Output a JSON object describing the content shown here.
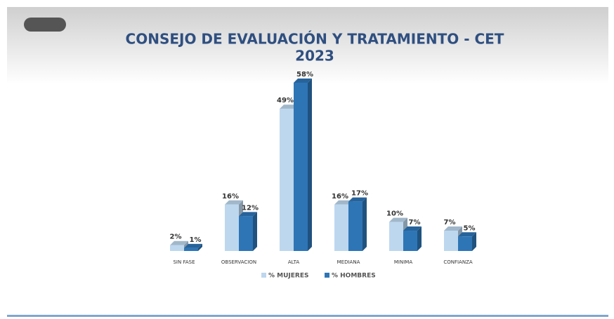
{
  "chart_data": {
    "type": "bar3d",
    "title": "CONSEJO DE EVALUACIÓN Y TRATAMIENTO - CET",
    "subtitle": "2023",
    "categories": [
      "SIN FASE",
      "OBSERVACION",
      "ALTA",
      "MEDIANA",
      "MINIMA",
      "CONFIANZA"
    ],
    "series": [
      {
        "name": "% MUJERES",
        "color": "#bdd7ee",
        "values": [
          2,
          16,
          49,
          16,
          10,
          7
        ],
        "value_labels": [
          "2%",
          "16%",
          "49%",
          "16%",
          "10%",
          "7%"
        ]
      },
      {
        "name": "% HOMBRES",
        "color": "#2e75b6",
        "values": [
          1,
          12,
          58,
          17,
          7,
          5
        ],
        "value_labels": [
          "1%",
          "12%",
          "58%",
          "17%",
          "7%",
          "5%"
        ]
      }
    ],
    "legend": "bottom"
  }
}
